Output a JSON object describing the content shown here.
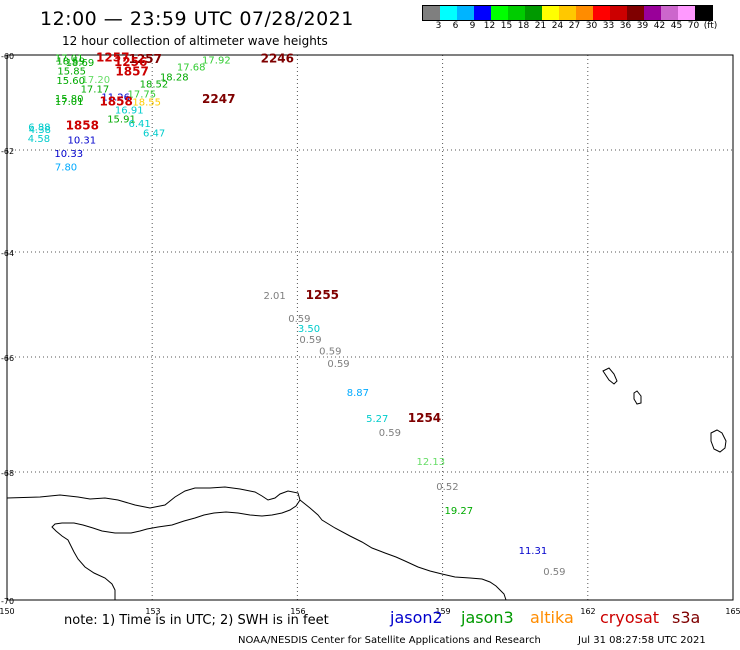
{
  "header": {
    "title": "12:00 — 23:59 UTC 07/28/2021",
    "subtitle": "12 hour collection of altimeter wave heights"
  },
  "scale": {
    "colors": [
      "#7f7f7f",
      "#00ffff",
      "#00b4ff",
      "#0000ff",
      "#00ff00",
      "#00cc00",
      "#009900",
      "#ffff00",
      "#ffc800",
      "#ff8c00",
      "#ff0000",
      "#cc0000",
      "#7f0000",
      "#990099",
      "#cc66cc",
      "#ff99ff",
      "#000000"
    ],
    "labels": [
      "3",
      "6",
      "9",
      "12",
      "15",
      "18",
      "21",
      "24",
      "27",
      "30",
      "33",
      "36",
      "39",
      "42",
      "45",
      "70",
      "(ft)"
    ]
  },
  "axes": {
    "lat_labels": [
      "-60",
      "-62",
      "-64",
      "-66",
      "-68",
      "-70"
    ],
    "lon_labels": [
      "150",
      "153",
      "156",
      "159",
      "162",
      "165"
    ]
  },
  "observations": [
    {
      "t": "17.01",
      "c": "#00aa00",
      "lon": 150.99,
      "lat": -60.05
    },
    {
      "t": "18.59",
      "c": "#00aa00",
      "lon": 151.02,
      "lat": -60.12
    },
    {
      "t": "1257",
      "c": "#cc0000",
      "lon": 151.84,
      "lat": -60.05,
      "b": true
    },
    {
      "t": "1257",
      "c": "#7f0000",
      "lon": 152.51,
      "lat": -60.08,
      "b": true
    },
    {
      "t": "1256",
      "c": "#cc0000",
      "lon": 152.21,
      "lat": -60.15,
      "b": true
    },
    {
      "t": "18.69",
      "c": "#00aa00",
      "lon": 151.21,
      "lat": -60.15
    },
    {
      "t": "17.92",
      "c": "#33cc33",
      "lon": 154.03,
      "lat": -60.09
    },
    {
      "t": "2246",
      "c": "#7f0000",
      "lon": 155.24,
      "lat": -60.07,
      "b": true
    },
    {
      "t": "17.68",
      "c": "#33cc33",
      "lon": 153.51,
      "lat": -60.24
    },
    {
      "t": "15.85",
      "c": "#00aa00",
      "lon": 151.04,
      "lat": -60.33
    },
    {
      "t": "1857",
      "c": "#cc0000",
      "lon": 152.24,
      "lat": -60.35,
      "b": true
    },
    {
      "t": "18.28",
      "c": "#00aa00",
      "lon": 153.16,
      "lat": -60.45
    },
    {
      "t": "17.20",
      "c": "#66dd66",
      "lon": 151.54,
      "lat": -60.5
    },
    {
      "t": "15.60",
      "c": "#00aa00",
      "lon": 151.02,
      "lat": -60.53
    },
    {
      "t": "18.52",
      "c": "#00aa00",
      "lon": 152.74,
      "lat": -60.6
    },
    {
      "t": "17.17",
      "c": "#00aa00",
      "lon": 151.52,
      "lat": -60.71
    },
    {
      "t": "17.75",
      "c": "#33cc33",
      "lon": 152.49,
      "lat": -60.81
    },
    {
      "t": "11.26",
      "c": "#0000cc",
      "lon": 151.95,
      "lat": -60.87
    },
    {
      "t": "15.80",
      "c": "#00aa00",
      "lon": 150.99,
      "lat": -60.9
    },
    {
      "t": "18.55",
      "c": "#ffcc00",
      "lon": 152.59,
      "lat": -60.98
    },
    {
      "t": "17.01",
      "c": "#00aa00",
      "lon": 150.99,
      "lat": -60.97
    },
    {
      "t": "1858",
      "c": "#cc0000",
      "lon": 151.91,
      "lat": -60.98,
      "b": true
    },
    {
      "t": "2247",
      "c": "#7f0000",
      "lon": 154.03,
      "lat": -60.93,
      "b": true
    },
    {
      "t": "16.91",
      "c": "#00cccc",
      "lon": 152.23,
      "lat": -61.15
    },
    {
      "t": "15.91",
      "c": "#00aa00",
      "lon": 152.07,
      "lat": -61.34
    },
    {
      "t": "6.41",
      "c": "#00cccc",
      "lon": 152.51,
      "lat": -61.43
    },
    {
      "t": "6.88",
      "c": "#00cccc",
      "lon": 150.44,
      "lat": -61.51
    },
    {
      "t": "1858",
      "c": "#cc0000",
      "lon": 151.21,
      "lat": -61.48,
      "b": true
    },
    {
      "t": "4.38",
      "c": "#00cccc",
      "lon": 150.45,
      "lat": -61.56
    },
    {
      "t": "6.47",
      "c": "#00cccc",
      "lon": 152.81,
      "lat": -61.63
    },
    {
      "t": "4.58",
      "c": "#00cccc",
      "lon": 150.43,
      "lat": -61.75
    },
    {
      "t": "10.31",
      "c": "#0000cc",
      "lon": 151.25,
      "lat": -61.78
    },
    {
      "t": "10.33",
      "c": "#0000cc",
      "lon": 150.98,
      "lat": -62.06
    },
    {
      "t": "7.80",
      "c": "#00aaff",
      "lon": 150.99,
      "lat": -62.32
    },
    {
      "t": "2.01",
      "c": "#7f7f7f",
      "lon": 155.3,
      "lat": -64.82
    },
    {
      "t": "1255",
      "c": "#7f0000",
      "lon": 156.17,
      "lat": -64.82,
      "b": true
    },
    {
      "t": "0.59",
      "c": "#7f7f7f",
      "lon": 155.81,
      "lat": -65.26
    },
    {
      "t": "3.50",
      "c": "#00cccc",
      "lon": 156.01,
      "lat": -65.45
    },
    {
      "t": "0.59",
      "c": "#7f7f7f",
      "lon": 156.04,
      "lat": -65.66
    },
    {
      "t": "0.59",
      "c": "#7f7f7f",
      "lon": 156.45,
      "lat": -65.88
    },
    {
      "t": "0.59",
      "c": "#7f7f7f",
      "lon": 156.62,
      "lat": -66.1
    },
    {
      "t": "8.87",
      "c": "#00aaff",
      "lon": 157.02,
      "lat": -66.61
    },
    {
      "t": "5.27",
      "c": "#00cccc",
      "lon": 157.42,
      "lat": -67.06
    },
    {
      "t": "1254",
      "c": "#7f0000",
      "lon": 158.28,
      "lat": -67.06,
      "b": true
    },
    {
      "t": "0.59",
      "c": "#7f7f7f",
      "lon": 157.68,
      "lat": -67.3
    },
    {
      "t": "12.13",
      "c": "#66dd66",
      "lon": 158.46,
      "lat": -67.81
    },
    {
      "t": "0.52",
      "c": "#7f7f7f",
      "lon": 158.87,
      "lat": -68.22
    },
    {
      "t": "19.27",
      "c": "#00aa00",
      "lon": 159.04,
      "lat": -68.59
    },
    {
      "t": "11.31",
      "c": "#0000cc",
      "lon": 160.57,
      "lat": -69.22
    },
    {
      "t": "0.59",
      "c": "#7f7f7f",
      "lon": 161.08,
      "lat": -69.55
    }
  ],
  "footer": {
    "note": "note: 1) Time is in UTC; 2) SWH is in feet",
    "satellites": [
      {
        "name": "jason2",
        "color": "#0000cc"
      },
      {
        "name": "jason3",
        "color": "#009900"
      },
      {
        "name": "altika",
        "color": "#ff8c00"
      },
      {
        "name": "cryosat",
        "color": "#cc0000"
      },
      {
        "name": "s3a",
        "color": "#7f0000"
      }
    ],
    "credit": "NOAA/NESDIS Center for Satellite Applications and Research",
    "generated": "Jul 31 08:27:58 UTC 2021"
  }
}
